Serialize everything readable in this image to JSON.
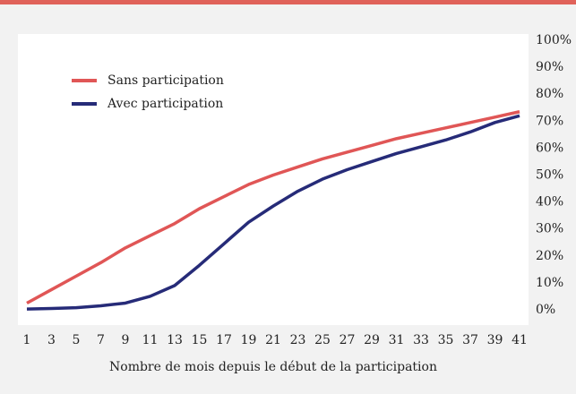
{
  "chart_data": {
    "type": "line",
    "x_label": "Nombre de mois depuis le début de la participation",
    "x": [
      1,
      3,
      5,
      7,
      9,
      11,
      13,
      15,
      17,
      19,
      21,
      23,
      25,
      27,
      29,
      31,
      33,
      35,
      37,
      39,
      41
    ],
    "xlim": [
      1,
      41
    ],
    "xticks": [
      1,
      3,
      5,
      7,
      9,
      11,
      13,
      15,
      17,
      19,
      21,
      23,
      25,
      27,
      29,
      31,
      33,
      35,
      37,
      39,
      41
    ],
    "ylim": [
      0,
      100
    ],
    "yticks": [
      {
        "value": 0,
        "label": "0%"
      },
      {
        "value": 10,
        "label": "10%"
      },
      {
        "value": 20,
        "label": "20%"
      },
      {
        "value": 30,
        "label": "30%"
      },
      {
        "value": 40,
        "label": "40%"
      },
      {
        "value": 50,
        "label": "50%"
      },
      {
        "value": 60,
        "label": "60%"
      },
      {
        "value": 70,
        "label": "70%"
      },
      {
        "value": 80,
        "label": "80%"
      },
      {
        "value": 90,
        "label": "90%"
      },
      {
        "value": 100,
        "label": "100%"
      }
    ],
    "legend": "upper left",
    "series": [
      {
        "name": "Sans participation",
        "color": "#e05656",
        "values": [
          2.5,
          7.5,
          12.5,
          17.5,
          23,
          27.5,
          32,
          37.5,
          42,
          46.5,
          50,
          53,
          56,
          58.5,
          61,
          63.5,
          65.5,
          67.5,
          69.5,
          71.5,
          73.5
        ]
      },
      {
        "name": "Avec participation",
        "color": "#262b78",
        "values": [
          0.3,
          0.5,
          0.8,
          1.5,
          2.5,
          5,
          9,
          16.5,
          24.5,
          32.5,
          38.5,
          44,
          48.5,
          52,
          55,
          58,
          60.5,
          63,
          66,
          69.5,
          72
        ]
      }
    ]
  }
}
